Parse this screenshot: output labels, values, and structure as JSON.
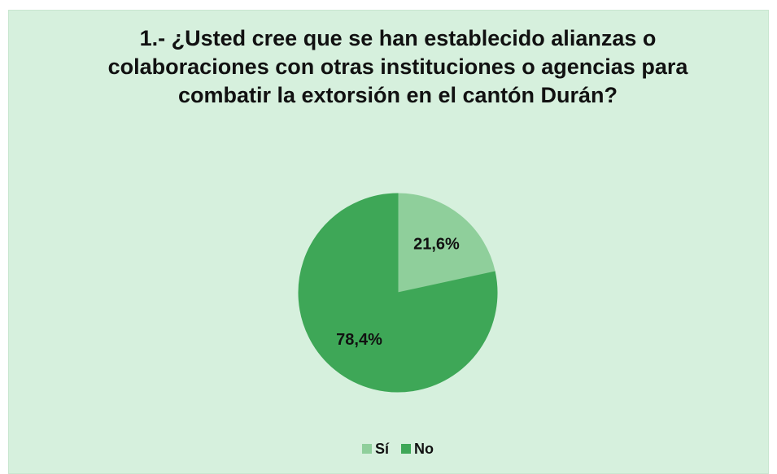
{
  "chart_data": {
    "type": "pie",
    "title": "1.- ¿Usted cree que se han establecido alianzas o colaboraciones con otras instituciones o agencias para combatir la extorsión en el cantón Durán?",
    "categories": [
      "Sí",
      "No"
    ],
    "values": [
      21.6,
      78.4
    ],
    "value_labels": [
      "21,6%",
      "78,4%"
    ],
    "colors": [
      "#8fcf9b",
      "#3ea757"
    ],
    "legend": "bottom"
  }
}
